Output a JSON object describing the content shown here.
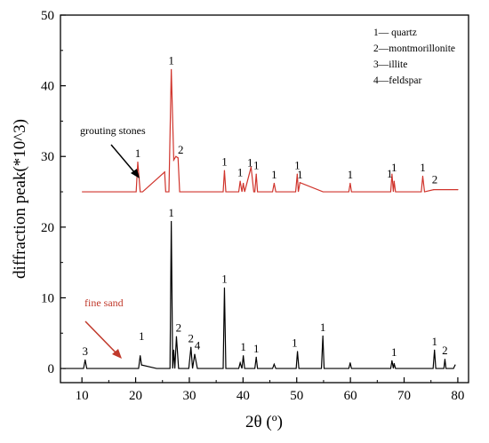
{
  "chart_data": {
    "type": "line",
    "title": "",
    "xlabel": "2θ (º)",
    "ylabel": "diffraction peak(*10^3)",
    "xlim": [
      6,
      82
    ],
    "ylim": [
      -2,
      50
    ],
    "xticks": [
      10,
      20,
      30,
      40,
      50,
      60,
      70,
      80
    ],
    "yticks": [
      0,
      10,
      20,
      30,
      40,
      50
    ],
    "grid": false,
    "legend": {
      "placement": "top-right",
      "entries": [
        "1— quartz",
        "2—montmorillonite",
        "3—illite",
        "4—feldspar"
      ]
    },
    "series": [
      {
        "name": "grouting stones",
        "color": "#d0342c",
        "baseline": 25,
        "x": [
          10,
          13.5,
          20.1,
          20.4,
          20.85,
          21.3,
          25.4,
          25.6,
          26.2,
          26.64,
          27.1,
          27.5,
          27.9,
          28.2,
          29.5,
          30.5,
          36.3,
          36.54,
          36.8,
          39.2,
          39.47,
          39.8,
          40.05,
          40.3,
          41.5,
          42.0,
          42.2,
          42.46,
          42.7,
          45.5,
          45.8,
          46.1,
          49.8,
          50.1,
          50.3,
          50.6,
          54.9,
          55.3,
          59.7,
          59.96,
          60.2,
          64.0,
          67.5,
          67.74,
          68.0,
          68.14,
          68.4,
          73.2,
          73.47,
          73.8,
          75.5,
          80
        ],
        "values": [
          25,
          25,
          25,
          29.2,
          25,
          25,
          27.8,
          25,
          25,
          42.3,
          29.5,
          30,
          29.8,
          25,
          25,
          25,
          25,
          28,
          25,
          25,
          26.5,
          25,
          26.2,
          25,
          28.5,
          25,
          25,
          27.5,
          25,
          25,
          26.2,
          25,
          25,
          27.5,
          25,
          26.3,
          25,
          25,
          25,
          26.2,
          25,
          25,
          25,
          27.5,
          25,
          26.5,
          25,
          25,
          27.2,
          25,
          25.3,
          25.3
        ]
      },
      {
        "name": "fine sand",
        "color": "#000000",
        "baseline": 0,
        "x": [
          6.5,
          10.3,
          10.6,
          10.9,
          20.55,
          20.85,
          21.1,
          23.9,
          26.4,
          26.64,
          26.9,
          27.1,
          27.3,
          27.6,
          28.0,
          29.9,
          30.3,
          30.6,
          31.0,
          31.5,
          35.5,
          36.3,
          36.54,
          36.8,
          39.2,
          39.47,
          39.8,
          40.05,
          40.3,
          42.2,
          42.46,
          42.7,
          45.5,
          45.8,
          46.1,
          49.9,
          50.14,
          50.4,
          54.6,
          54.87,
          55.1,
          59.7,
          59.96,
          60.2,
          64.0,
          67.5,
          67.74,
          68.0,
          68.14,
          68.4,
          75.4,
          75.66,
          75.9,
          77.4,
          77.6,
          77.8,
          79.2,
          79.5
        ],
        "values": [
          0,
          0,
          1.2,
          0,
          0,
          1.8,
          0.5,
          0,
          0,
          20.8,
          0,
          2.6,
          0,
          4.5,
          0,
          0,
          3,
          0,
          2,
          0,
          0,
          0,
          11.4,
          0,
          0,
          0.8,
          0,
          1.8,
          0,
          0,
          1.6,
          0,
          0,
          0.6,
          0,
          0,
          2.4,
          0,
          0,
          4.6,
          0,
          0,
          0.8,
          0,
          0,
          0,
          1.1,
          0,
          0.7,
          0,
          0,
          2.6,
          0,
          0,
          1.3,
          0,
          0,
          0.5
        ]
      }
    ],
    "annotations": [
      {
        "text": "grouting stones",
        "color": "#000000"
      },
      {
        "text": "fine sand",
        "color": "#c0392b"
      }
    ],
    "peak_labels": [
      {
        "text": "1",
        "x": 20.4,
        "y": 29.9
      },
      {
        "text": "1",
        "x": 26.64,
        "y": 43.0
      },
      {
        "text": "2",
        "x": 28.4,
        "y": 30.4
      },
      {
        "text": "1",
        "x": 36.54,
        "y": 28.7
      },
      {
        "text": "1",
        "x": 39.47,
        "y": 27.2
      },
      {
        "text": "1",
        "x": 41.3,
        "y": 28.6
      },
      {
        "text": "1",
        "x": 42.46,
        "y": 28.2
      },
      {
        "text": "1",
        "x": 45.8,
        "y": 26.9
      },
      {
        "text": "1",
        "x": 50.1,
        "y": 28.2
      },
      {
        "text": "1",
        "x": 50.6,
        "y": 26.9
      },
      {
        "text": "1",
        "x": 59.96,
        "y": 26.9
      },
      {
        "text": "1",
        "x": 67.3,
        "y": 27.0
      },
      {
        "text": "1",
        "x": 68.14,
        "y": 27.9
      },
      {
        "text": "1",
        "x": 73.47,
        "y": 27.9
      },
      {
        "text": "2",
        "x": 75.7,
        "y": 26.2
      },
      {
        "text": "1",
        "x": 26.64,
        "y": 21.5
      },
      {
        "text": "3",
        "x": 10.6,
        "y": 1.9
      },
      {
        "text": "1",
        "x": 21.1,
        "y": 4.0
      },
      {
        "text": "2",
        "x": 28.0,
        "y": 5.2
      },
      {
        "text": "2",
        "x": 30.3,
        "y": 3.7
      },
      {
        "text": "4",
        "x": 31.5,
        "y": 2.7
      },
      {
        "text": "1",
        "x": 36.54,
        "y": 12.1
      },
      {
        "text": "1",
        "x": 40.05,
        "y": 2.5
      },
      {
        "text": "1",
        "x": 42.46,
        "y": 2.3
      },
      {
        "text": "1",
        "x": 49.6,
        "y": 3.1
      },
      {
        "text": "1",
        "x": 54.87,
        "y": 5.3
      },
      {
        "text": "1",
        "x": 68.14,
        "y": 1.8
      },
      {
        "text": "1",
        "x": 75.66,
        "y": 3.3
      },
      {
        "text": "2",
        "x": 77.6,
        "y": 2.0
      }
    ]
  }
}
